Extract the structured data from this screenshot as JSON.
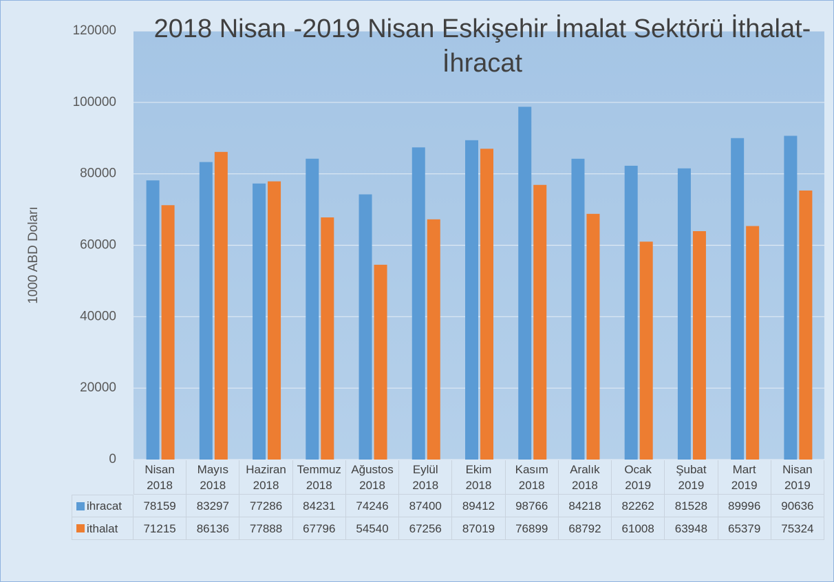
{
  "chart_data": {
    "type": "bar",
    "title": "2018 Nisan -2019 Nisan Eskişehir İmalat Sektörü İthalat-İhracat",
    "y_label": "1000 ABD Doları",
    "categories": [
      "Nisan 2018",
      "Mayıs 2018",
      "Haziran 2018",
      "Temmuz 2018",
      "Ağustos 2018",
      "Eylül 2018",
      "Ekim 2018",
      "Kasım 2018",
      "Aralık 2018",
      "Ocak 2019",
      "Şubat 2019",
      "Mart 2019",
      "Nisan 2019"
    ],
    "series": [
      {
        "name": "ihracat",
        "color": "#5b9bd5",
        "values": [
          78159,
          83297,
          77286,
          84231,
          74246,
          87400,
          89412,
          98766,
          84218,
          82262,
          81528,
          89996,
          90636
        ]
      },
      {
        "name": "ithalat",
        "color": "#ed7d31",
        "values": [
          71215,
          86136,
          77888,
          67796,
          54540,
          67256,
          87019,
          76899,
          68792,
          61008,
          63948,
          65379,
          75324
        ]
      }
    ],
    "ylim": [
      0,
      120000
    ],
    "yticks": [
      0,
      20000,
      40000,
      60000,
      80000,
      100000,
      120000
    ],
    "grid": true,
    "data_table": true
  }
}
